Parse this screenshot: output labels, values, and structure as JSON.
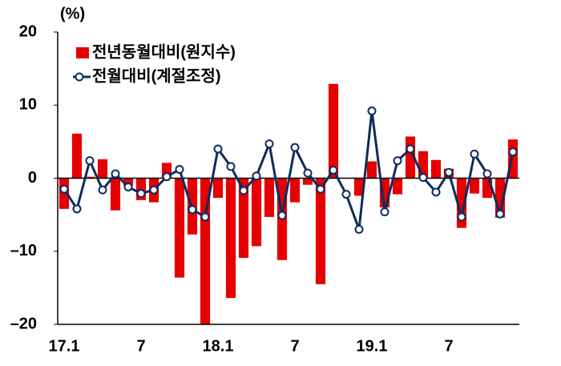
{
  "chart_data": {
    "type": "bar_line",
    "y_label": "(%)",
    "categories": [
      "17.1",
      null,
      null,
      null,
      null,
      null,
      "7",
      null,
      null,
      null,
      null,
      null,
      "18.1",
      null,
      null,
      null,
      null,
      null,
      "7",
      null,
      null,
      null,
      null,
      null,
      "19.1",
      null,
      null,
      null,
      null,
      null,
      "7",
      null,
      null,
      null,
      null,
      null
    ],
    "series": [
      {
        "name": "전년동월대비(원지수)",
        "type": "bar",
        "color": "#e60000",
        "values": [
          -4.2,
          6.1,
          0.2,
          2.6,
          -4.4,
          -1.0,
          -3.0,
          -3.3,
          2.1,
          -13.6,
          -7.7,
          -20.0,
          -2.7,
          -16.4,
          -10.9,
          -9.3,
          -5.3,
          -11.2,
          -3.3,
          -0.9,
          -14.5,
          12.9,
          0,
          -2.4,
          2.3,
          -4.0,
          -2.2,
          5.7,
          3.7,
          2.5,
          1.3,
          -6.8,
          -2.1,
          -2.7,
          -5.4,
          5.3
        ]
      },
      {
        "name": "전월대비(계절조정)",
        "type": "line",
        "color": "#0d2c5e",
        "values": [
          -1.5,
          -4.2,
          2.4,
          -1.6,
          0.6,
          -1.2,
          -2.1,
          -1.6,
          0.2,
          1.2,
          -4.3,
          -5.3,
          4.0,
          1.6,
          -1.7,
          0.3,
          4.7,
          -5.1,
          4.2,
          0.7,
          -1.5,
          1.1,
          -2.2,
          -7.0,
          9.2,
          -4.6,
          2.4,
          4.0,
          0.1,
          -1.9,
          0.8,
          -5.3,
          3.3,
          0.6,
          -4.9,
          3.6
        ]
      }
    ],
    "ylim": [
      -20,
      20
    ],
    "yticks": [
      {
        "value": -20,
        "label": "–20"
      },
      {
        "value": -10,
        "label": "–10"
      },
      0,
      10,
      20
    ],
    "grid": false,
    "legend": "top-left"
  }
}
